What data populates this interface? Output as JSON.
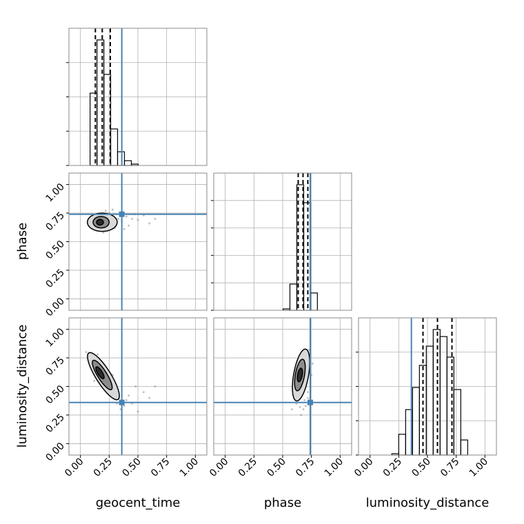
{
  "chart_data": {
    "type": "corner",
    "truth_color": "#4682b4",
    "grid": true,
    "contour_colors": [
      "#d9d9d9",
      "#8c8c8c",
      "#2b2b2b"
    ],
    "parameters": [
      {
        "label": "geocent_time",
        "lim": [
          -0.1,
          1.1
        ],
        "ticks": [
          {
            "value": 0,
            "label": "0.00"
          },
          {
            "value": 0.25,
            "label": "0.25"
          },
          {
            "value": 0.5,
            "label": "0.50"
          },
          {
            "value": 0.75,
            "label": "0.75"
          },
          {
            "value": 1,
            "label": "1.00"
          }
        ],
        "truth": 0.36,
        "quantiles": [
          0.13,
          0.19,
          0.26
        ],
        "hist": {
          "bins": [
            0.084,
            0.144,
            0.204,
            0.263,
            0.323,
            0.383,
            0.443,
            0.503
          ],
          "counts": [
            422,
            732,
            531,
            213,
            80,
            28,
            8
          ],
          "ylim": [
            0,
            800
          ],
          "yticks": [
            0,
            200,
            400,
            600
          ]
        }
      },
      {
        "label": "phase",
        "lim": [
          -0.1,
          1.1
        ],
        "ticks": [
          {
            "value": 0,
            "label": "0.00"
          },
          {
            "value": 0.25,
            "label": "0.25"
          },
          {
            "value": 0.5,
            "label": "0.50"
          },
          {
            "value": 0.75,
            "label": "0.75"
          },
          {
            "value": 1,
            "label": "1.00"
          }
        ],
        "truth": 0.74,
        "quantiles": [
          0.635,
          0.677,
          0.719
        ],
        "hist": {
          "bins": [
            0.503,
            0.563,
            0.623,
            0.683,
            0.743,
            0.802
          ],
          "counts": [
            10,
            191,
            915,
            784,
            126
          ],
          "ylim": [
            0,
            1000
          ],
          "yticks": [
            0,
            200,
            400,
            600,
            800
          ]
        }
      },
      {
        "label": "luminosity_distance",
        "lim": [
          -0.1,
          1.1
        ],
        "ticks": [
          {
            "value": 0,
            "label": "0.00"
          },
          {
            "value": 0.25,
            "label": "0.25"
          },
          {
            "value": 0.5,
            "label": "0.50"
          },
          {
            "value": 0.75,
            "label": "0.75"
          },
          {
            "value": 1,
            "label": "1.00"
          }
        ],
        "truth": 0.36,
        "quantiles": [
          0.461,
          0.587,
          0.713
        ],
        "hist": {
          "bins": [
            0.19,
            0.25,
            0.31,
            0.37,
            0.43,
            0.49,
            0.55,
            0.61,
            0.67,
            0.73,
            0.79,
            0.85
          ],
          "counts": [
            8,
            121,
            265,
            394,
            523,
            635,
            732,
            691,
            571,
            382,
            88
          ],
          "ylim": [
            0,
            800
          ],
          "yticks": [
            0,
            200,
            400,
            600
          ]
        }
      }
    ],
    "pairs": [
      {
        "x": 0,
        "y": 1,
        "points": {
          "x": [
            0.08,
            0.12,
            0.15,
            0.2,
            0.25,
            0.3,
            0.33,
            0.36,
            0.4,
            0.42,
            0.45,
            0.5,
            0.55,
            0.65,
            0.28,
            0.1,
            0.22,
            0.38,
            0.47,
            0.6
          ],
          "y": [
            0.66,
            0.72,
            0.6,
            0.58,
            0.75,
            0.62,
            0.7,
            0.68,
            0.72,
            0.64,
            0.7,
            0.69,
            0.73,
            0.7,
            0.78,
            0.63,
            0.77,
            0.61,
            0.74,
            0.66
          ]
        },
        "contours": [
          {
            "center": [
              0.19,
              0.67
            ],
            "radii": [
              0.13,
              0.08
            ],
            "angle": 0
          },
          {
            "center": [
              0.18,
              0.67
            ],
            "radii": [
              0.07,
              0.05
            ],
            "angle": 0
          },
          {
            "center": [
              0.17,
              0.67
            ],
            "radii": [
              0.03,
              0.025
            ],
            "angle": 0
          }
        ]
      },
      {
        "x": 0,
        "y": 2,
        "points": {
          "x": [
            0.05,
            0.1,
            0.12,
            0.2,
            0.25,
            0.3,
            0.32,
            0.35,
            0.38,
            0.4,
            0.42,
            0.45,
            0.5,
            0.55,
            0.6,
            0.65,
            0.28,
            0.15,
            0.36,
            0.48
          ],
          "y": [
            0.8,
            0.7,
            0.55,
            0.5,
            0.45,
            0.4,
            0.35,
            0.3,
            0.33,
            0.38,
            0.42,
            0.35,
            0.28,
            0.45,
            0.4,
            0.5,
            0.6,
            0.78,
            0.25,
            0.5
          ]
        },
        "contours": [
          {
            "center": [
              0.2,
              0.59
            ],
            "radii": [
              0.24,
              0.065
            ],
            "angle": -58
          },
          {
            "center": [
              0.19,
              0.6
            ],
            "radii": [
              0.15,
              0.04
            ],
            "angle": -58
          },
          {
            "center": [
              0.17,
              0.62
            ],
            "radii": [
              0.06,
              0.02
            ],
            "angle": -58
          }
        ]
      },
      {
        "x": 1,
        "y": 2,
        "points": {
          "x": [
            0.58,
            0.6,
            0.62,
            0.65,
            0.68,
            0.7,
            0.72,
            0.74,
            0.75,
            0.63,
            0.67,
            0.71,
            0.73,
            0.6,
            0.66,
            0.69,
            0.64,
            0.76,
            0.72,
            0.61
          ],
          "y": [
            0.3,
            0.4,
            0.35,
            0.32,
            0.3,
            0.33,
            0.4,
            0.5,
            0.6,
            0.7,
            0.75,
            0.8,
            0.82,
            0.55,
            0.25,
            0.38,
            0.62,
            0.7,
            0.45,
            0.48
          ]
        },
        "contours": [
          {
            "center": [
              0.66,
              0.6
            ],
            "radii": [
              0.23,
              0.065
            ],
            "angle": 80
          },
          {
            "center": [
              0.65,
              0.6
            ],
            "radii": [
              0.14,
              0.04
            ],
            "angle": 80
          },
          {
            "center": [
              0.65,
              0.6
            ],
            "radii": [
              0.06,
              0.02
            ],
            "angle": 80
          }
        ]
      }
    ]
  }
}
